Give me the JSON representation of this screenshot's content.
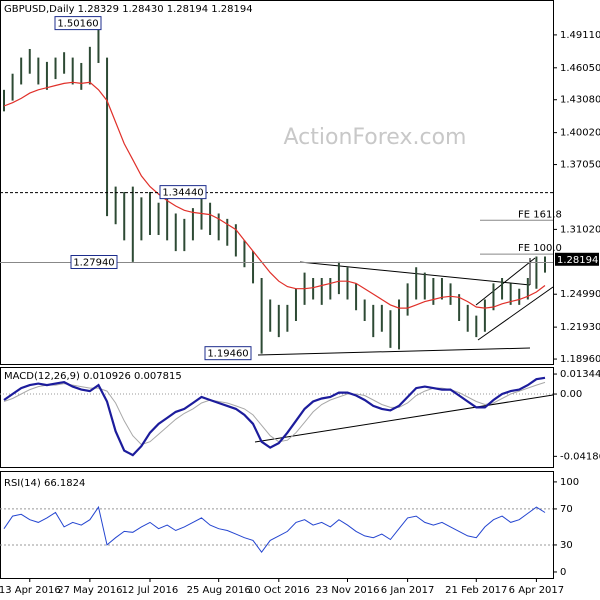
{
  "chart_data": [
    {
      "type": "hilo",
      "title": "GBPUSD,Daily  1.28329 1.28430 1.28194 1.28194",
      "watermark": "ActionForex.com",
      "categories": [
        null,
        null,
        null,
        "13 Apr 2016",
        null,
        null,
        null,
        null,
        null,
        null,
        "27 May 2016",
        null,
        null,
        null,
        null,
        null,
        null,
        "12 Jul 2016",
        null,
        null,
        null,
        null,
        null,
        null,
        null,
        "25 Aug 2016",
        null,
        null,
        null,
        null,
        null,
        null,
        "10 Oct 2016",
        null,
        null,
        null,
        null,
        null,
        null,
        null,
        "23 Nov 2016",
        null,
        null,
        null,
        null,
        null,
        null,
        "6 Jan 2017",
        null,
        null,
        null,
        null,
        null,
        null,
        null,
        "21 Feb 2017",
        null,
        null,
        null,
        null,
        null,
        null,
        "6 Apr 2017",
        null
      ],
      "high": [
        1.44,
        1.455,
        1.47,
        1.478,
        1.47,
        1.466,
        1.47,
        1.475,
        1.47,
        1.465,
        1.48,
        1.5016,
        1.47,
        1.35,
        1.345,
        1.35,
        1.34,
        1.345,
        1.335,
        1.34,
        1.325,
        1.32,
        1.33,
        1.3444,
        1.335,
        1.325,
        1.32,
        1.315,
        1.3,
        1.29,
        1.265,
        1.245,
        1.24,
        1.24,
        1.255,
        1.27,
        1.265,
        1.265,
        1.265,
        1.28,
        1.275,
        1.26,
        1.245,
        1.24,
        1.24,
        1.235,
        1.245,
        1.26,
        1.275,
        1.27,
        1.265,
        1.265,
        1.26,
        1.25,
        1.24,
        1.23,
        1.245,
        1.26,
        1.265,
        1.26,
        1.255,
        1.265,
        1.285,
        1.285
      ],
      "low": [
        1.42,
        1.43,
        1.445,
        1.455,
        1.445,
        1.44,
        1.45,
        1.455,
        1.445,
        1.44,
        1.445,
        1.465,
        1.3225,
        1.315,
        1.3,
        1.28,
        1.3,
        1.305,
        1.305,
        1.3,
        1.29,
        1.29,
        1.3,
        1.31,
        1.305,
        1.3,
        1.295,
        1.285,
        1.275,
        1.26,
        1.1946,
        1.215,
        1.21,
        1.215,
        1.225,
        1.24,
        1.245,
        1.24,
        1.245,
        1.25,
        1.245,
        1.235,
        1.225,
        1.21,
        1.215,
        1.2,
        1.1986,
        1.23,
        1.245,
        1.245,
        1.24,
        1.245,
        1.24,
        1.225,
        1.215,
        1.21,
        1.215,
        1.235,
        1.245,
        1.24,
        1.24,
        1.245,
        1.255,
        1.27
      ],
      "color": "#2d4a34",
      "ma": {
        "color": "#e0302a",
        "values": [
          1.425,
          1.428,
          1.432,
          1.437,
          1.44,
          1.442,
          1.444,
          1.446,
          1.447,
          1.446,
          1.447,
          1.44,
          1.43,
          1.41,
          1.39,
          1.375,
          1.36,
          1.35,
          1.343,
          1.337,
          1.332,
          1.328,
          1.326,
          1.325,
          1.324,
          1.32,
          1.315,
          1.31,
          1.3,
          1.29,
          1.28,
          1.27,
          1.262,
          1.257,
          1.255,
          1.255,
          1.256,
          1.258,
          1.26,
          1.262,
          1.262,
          1.26,
          1.255,
          1.25,
          1.245,
          1.24,
          1.237,
          1.237,
          1.24,
          1.243,
          1.245,
          1.247,
          1.248,
          1.247,
          1.243,
          1.238,
          1.237,
          1.238,
          1.241,
          1.243,
          1.245,
          1.248,
          1.252,
          1.258
        ]
      },
      "ylim": [
        1.185,
        1.5217
      ],
      "yticks": [
        {
          "value": 1.4911,
          "label": "1.49110"
        },
        {
          "value": 1.4605,
          "label": "1.46050"
        },
        {
          "value": 1.4308,
          "label": "1.43080"
        },
        {
          "value": 1.4002,
          "label": "1.40020"
        },
        {
          "value": 1.3705,
          "label": "1.37050"
        },
        {
          "value": 1.3102,
          "label": "1.31020"
        },
        {
          "value": 1.2499,
          "label": "1.24990"
        },
        {
          "value": 1.2193,
          "label": "1.21930"
        },
        {
          "value": 1.1896,
          "label": "1.18960"
        }
      ],
      "annotations": [
        {
          "value": 1.5016,
          "label": "1.50160"
        },
        {
          "value": 1.3444,
          "label": "1.34440"
        },
        {
          "value": 1.2794,
          "label": "1.27940"
        },
        {
          "value": 1.1946,
          "label": "1.19460"
        }
      ],
      "levels": [
        {
          "value": 1.3187,
          "label": "FE 161.8"
        },
        {
          "value": 1.2872,
          "label": "FE 100.0"
        }
      ],
      "last_price": {
        "value": 1.28194,
        "label": "1.28194"
      }
    },
    {
      "type": "macd",
      "title": "MACD(12,26,9) 0.010926 0.007815",
      "macd": {
        "color": "#1c1c9c",
        "values": [
          -0.004,
          0.0,
          0.004,
          0.006,
          0.007,
          0.006,
          0.007,
          0.008,
          0.005,
          0.003,
          0.002,
          0.006,
          -0.005,
          -0.025,
          -0.038,
          -0.041,
          -0.035,
          -0.026,
          -0.02,
          -0.016,
          -0.012,
          -0.01,
          -0.006,
          -0.002,
          -0.004,
          -0.006,
          -0.008,
          -0.01,
          -0.014,
          -0.02,
          -0.032,
          -0.036,
          -0.033,
          -0.026,
          -0.018,
          -0.01,
          -0.005,
          -0.003,
          -0.002,
          0.001,
          0.001,
          -0.001,
          -0.004,
          -0.008,
          -0.01,
          -0.011,
          -0.008,
          -0.002,
          0.004,
          0.005,
          0.004,
          0.003,
          0.003,
          -0.001,
          -0.005,
          -0.009,
          -0.009,
          -0.004,
          0.0,
          0.002,
          0.003,
          0.006,
          0.01,
          0.0109
        ]
      },
      "signal": {
        "color": "#a8a8a8",
        "values": [
          -0.005,
          -0.003,
          0.0,
          0.003,
          0.005,
          0.006,
          0.006,
          0.007,
          0.006,
          0.005,
          0.004,
          0.004,
          0.002,
          -0.006,
          -0.018,
          -0.028,
          -0.034,
          -0.032,
          -0.027,
          -0.022,
          -0.017,
          -0.013,
          -0.01,
          -0.006,
          -0.004,
          -0.005,
          -0.006,
          -0.008,
          -0.01,
          -0.014,
          -0.021,
          -0.028,
          -0.032,
          -0.031,
          -0.026,
          -0.019,
          -0.012,
          -0.007,
          -0.004,
          -0.002,
          0.0,
          0.0,
          -0.001,
          -0.004,
          -0.007,
          -0.009,
          -0.009,
          -0.006,
          -0.001,
          0.002,
          0.004,
          0.004,
          0.003,
          0.001,
          -0.002,
          -0.005,
          -0.007,
          -0.006,
          -0.003,
          0.0,
          0.002,
          0.004,
          0.006,
          0.0078
        ]
      },
      "ylim": [
        -0.0497,
        0.0175
      ],
      "yticks": [
        0.01344,
        {
          "value": 0,
          "label": "0.00"
        },
        -0.041867
      ]
    },
    {
      "type": "rsi",
      "title": "RSI(14) 66.1824",
      "color": "#2445d0",
      "values": [
        48,
        62,
        64,
        58,
        55,
        60,
        66,
        50,
        55,
        52,
        58,
        72,
        30,
        38,
        45,
        44,
        50,
        55,
        48,
        52,
        46,
        50,
        55,
        60,
        52,
        48,
        46,
        42,
        38,
        35,
        22,
        35,
        40,
        45,
        55,
        58,
        52,
        55,
        50,
        58,
        52,
        45,
        40,
        38,
        42,
        36,
        48,
        60,
        62,
        55,
        52,
        55,
        50,
        45,
        40,
        38,
        50,
        58,
        62,
        55,
        58,
        65,
        72,
        66
      ],
      "ylim": [
        -6.7,
        111
      ],
      "yticks": [
        100,
        70,
        30,
        0
      ]
    }
  ]
}
